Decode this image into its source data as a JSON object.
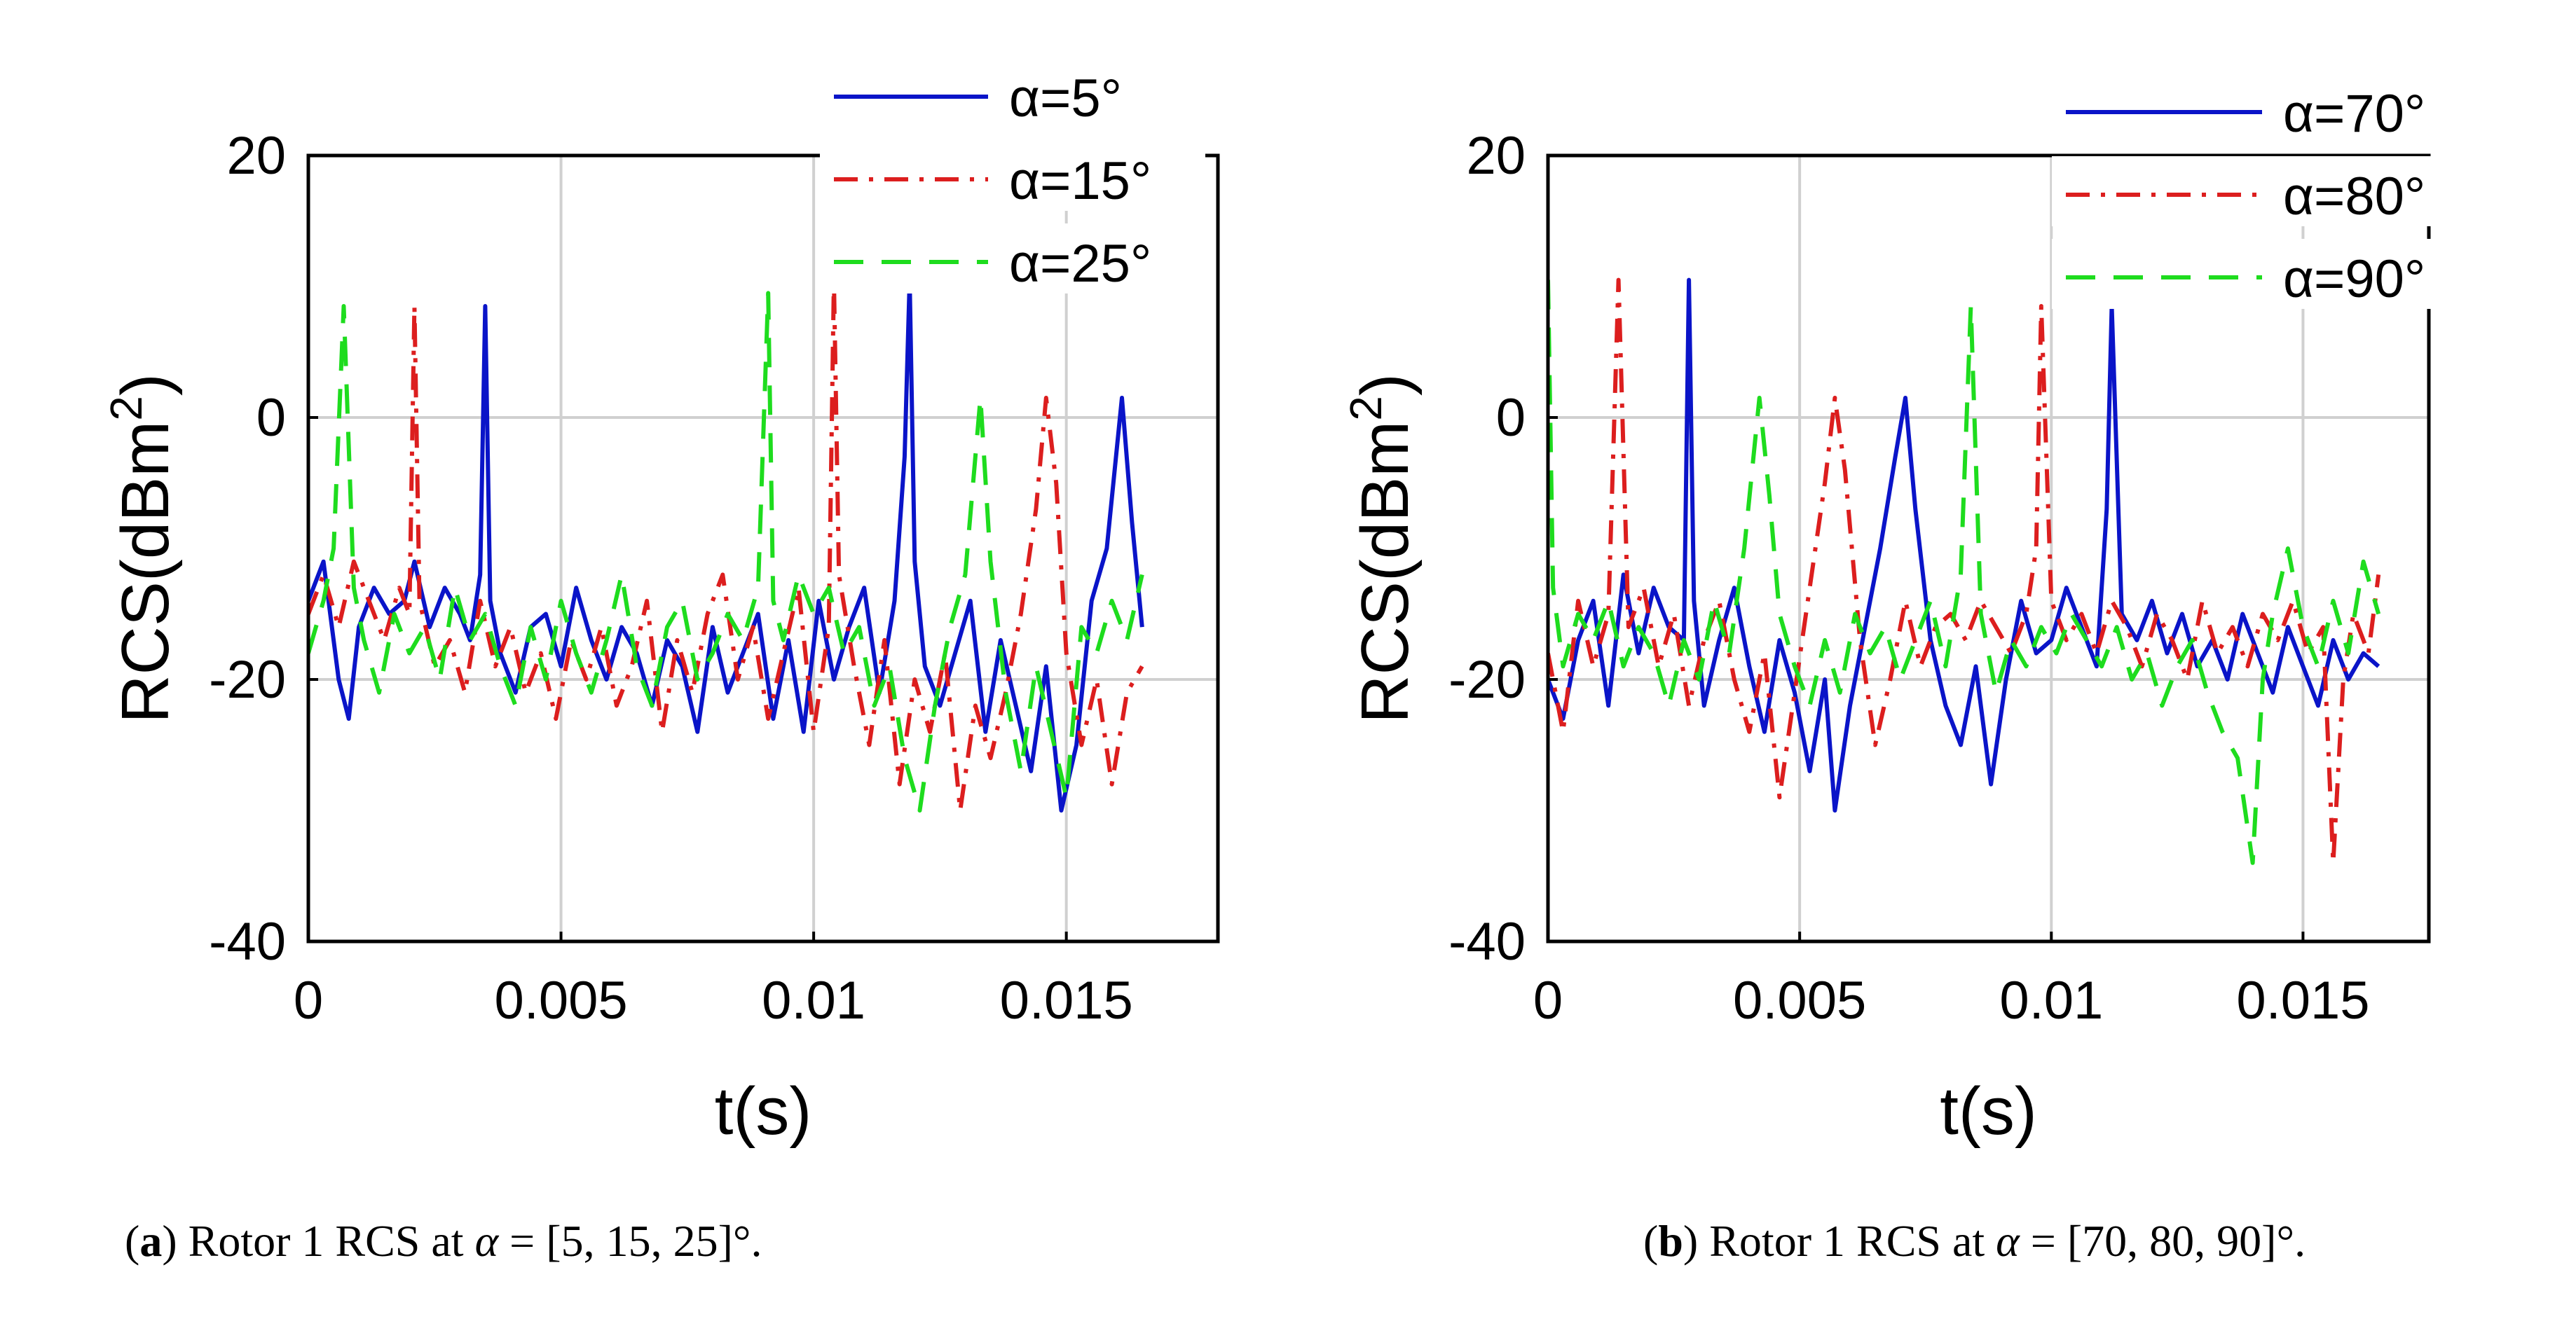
{
  "captions": {
    "a": {
      "letter": "a",
      "text": "Rotor 1 RCS at",
      "symbol": "α",
      "values": "= [5, 15, 25]°."
    },
    "b": {
      "letter": "b",
      "text": "Rotor 1 RCS at",
      "symbol": "α",
      "values": "= [70, 80, 90]°."
    }
  },
  "colors": {
    "blue": "#0a14c8",
    "red": "#dc1e1e",
    "green": "#1edc1e",
    "grid": "#d0d0d0",
    "axis": "#000000"
  },
  "chart_data": [
    {
      "type": "line",
      "xlabel": "t(s)",
      "ylabel": "RCS(dBm",
      "ylabel_sup": "2",
      "ylabel_end": ")",
      "xlim": [
        0,
        0.018
      ],
      "ylim": [
        -40,
        20
      ],
      "xticks": [
        0,
        0.005,
        0.01,
        0.015
      ],
      "xtick_labels": [
        "0",
        "0.005",
        "0.01",
        "0.015"
      ],
      "yticks": [
        -40,
        -20,
        0,
        20
      ],
      "ytick_labels": [
        "-40",
        "-20",
        "0",
        "20"
      ],
      "grid": true,
      "legend_position": "top-right",
      "series": [
        {
          "name": "α=5°",
          "color": "blue",
          "style": "solid",
          "x": [
            0,
            0.0003,
            0.0006,
            0.0008,
            0.001,
            0.0013,
            0.0016,
            0.0019,
            0.0021,
            0.0024,
            0.0027,
            0.003,
            0.0032,
            0.0034,
            0.0035,
            0.0036,
            0.0038,
            0.0041,
            0.0044,
            0.0047,
            0.005,
            0.0053,
            0.0056,
            0.0059,
            0.0062,
            0.0065,
            0.0068,
            0.0071,
            0.0074,
            0.0077,
            0.008,
            0.0083,
            0.0086,
            0.0089,
            0.0092,
            0.0095,
            0.0098,
            0.0101,
            0.0104,
            0.0107,
            0.011,
            0.0113,
            0.0116,
            0.0118,
            0.0119,
            0.012,
            0.0122,
            0.0125,
            0.0128,
            0.0131,
            0.0134,
            0.0137,
            0.014,
            0.0143,
            0.0146,
            0.0149,
            0.0152,
            0.0155,
            0.0158,
            0.0161,
            0.0163,
            0.0165
          ],
          "y": [
            -14,
            -11,
            -20,
            -23,
            -16,
            -13,
            -15,
            -14,
            -11,
            -16,
            -13,
            -15,
            -17,
            -12,
            8.5,
            -14,
            -18,
            -21,
            -16,
            -15,
            -19,
            -13,
            -17,
            -20,
            -16,
            -18,
            -22,
            -17,
            -19,
            -24,
            -16,
            -21,
            -18,
            -15,
            -23,
            -17,
            -24,
            -14,
            -20,
            -16,
            -13,
            -21,
            -14,
            -3,
            10.5,
            -11,
            -19,
            -22,
            -18,
            -14,
            -24,
            -17,
            -22,
            -27,
            -19,
            -30,
            -25,
            -14,
            -10,
            1.5,
            -8,
            -16
          ]
        },
        {
          "name": "α=15°",
          "color": "red",
          "style": "dashdot",
          "x": [
            0,
            0.0003,
            0.0006,
            0.0009,
            0.0012,
            0.0015,
            0.0018,
            0.002,
            0.0021,
            0.0022,
            0.0025,
            0.0028,
            0.0031,
            0.0034,
            0.0037,
            0.004,
            0.0043,
            0.0046,
            0.0049,
            0.0052,
            0.0055,
            0.0058,
            0.0061,
            0.0064,
            0.0067,
            0.007,
            0.0073,
            0.0076,
            0.0079,
            0.0082,
            0.0085,
            0.0088,
            0.0091,
            0.0094,
            0.0097,
            0.01,
            0.0103,
            0.0104,
            0.0105,
            0.0108,
            0.0111,
            0.0114,
            0.0117,
            0.012,
            0.0123,
            0.0126,
            0.0129,
            0.0132,
            0.0135,
            0.0138,
            0.0141,
            0.0144,
            0.0146,
            0.0148,
            0.015,
            0.0153,
            0.0156,
            0.0159,
            0.0162,
            0.0165
          ],
          "y": [
            -15,
            -12,
            -16,
            -11,
            -14,
            -17,
            -13,
            -15,
            8.5,
            -14,
            -19,
            -17,
            -21,
            -14,
            -19,
            -16,
            -21,
            -18,
            -23,
            -17,
            -20,
            -16,
            -22,
            -19,
            -14,
            -24,
            -17,
            -21,
            -15,
            -12,
            -20,
            -16,
            -23,
            -18,
            -13,
            -24,
            -16,
            10.5,
            -12,
            -19,
            -25,
            -17,
            -28,
            -20,
            -24,
            -18,
            -30,
            -22,
            -26,
            -21,
            -15,
            -7,
            1.5,
            -5,
            -18,
            -25,
            -20,
            -28,
            -21,
            -19
          ]
        },
        {
          "name": "α=25°",
          "color": "green",
          "style": "dashed",
          "x": [
            0,
            0.0003,
            0.0005,
            0.0007,
            0.0009,
            0.0011,
            0.0014,
            0.0017,
            0.002,
            0.0023,
            0.0026,
            0.0029,
            0.0032,
            0.0035,
            0.0038,
            0.0041,
            0.0044,
            0.0047,
            0.005,
            0.0053,
            0.0056,
            0.0059,
            0.0062,
            0.0065,
            0.0068,
            0.0071,
            0.0074,
            0.0077,
            0.008,
            0.0083,
            0.0086,
            0.0089,
            0.0091,
            0.0092,
            0.0094,
            0.0097,
            0.01,
            0.0103,
            0.0106,
            0.0109,
            0.0112,
            0.0115,
            0.0118,
            0.0121,
            0.0124,
            0.0127,
            0.013,
            0.0133,
            0.0135,
            0.0138,
            0.0141,
            0.0144,
            0.0147,
            0.015,
            0.0153,
            0.0156,
            0.0159,
            0.0162,
            0.0165
          ],
          "y": [
            -18,
            -14,
            -10,
            8.5,
            -13,
            -17,
            -21,
            -15,
            -18,
            -16,
            -20,
            -13,
            -17,
            -15,
            -19,
            -22,
            -16,
            -20,
            -14,
            -18,
            -21,
            -17,
            -12,
            -19,
            -22,
            -16,
            -14,
            -20,
            -18,
            -15,
            -17,
            -13,
            9.5,
            -14,
            -17,
            -12,
            -15,
            -13,
            -18,
            -16,
            -22,
            -19,
            -26,
            -30,
            -22,
            -16,
            -12,
            1.5,
            -11,
            -21,
            -27,
            -19,
            -24,
            -29,
            -16,
            -18,
            -14,
            -17,
            -12
          ]
        }
      ]
    },
    {
      "type": "line",
      "xlabel": "t(s)",
      "ylabel": "RCS(dBm",
      "ylabel_sup": "2",
      "ylabel_end": ")",
      "xlim": [
        0,
        0.0175
      ],
      "ylim": [
        -40,
        20
      ],
      "xticks": [
        0,
        0.005,
        0.01,
        0.015
      ],
      "xtick_labels": [
        "0",
        "0.005",
        "0.01",
        "0.015"
      ],
      "yticks": [
        -40,
        -20,
        0,
        20
      ],
      "ytick_labels": [
        "-40",
        "-20",
        "0",
        "20"
      ],
      "grid": true,
      "legend_position": "top-right",
      "series": [
        {
          "name": "α=70°",
          "color": "blue",
          "style": "solid",
          "x": [
            0,
            0.0003,
            0.0006,
            0.0009,
            0.0012,
            0.0015,
            0.0018,
            0.0021,
            0.0024,
            0.0027,
            0.0028,
            0.0029,
            0.0031,
            0.0034,
            0.0037,
            0.004,
            0.0043,
            0.0046,
            0.0049,
            0.0052,
            0.0055,
            0.0057,
            0.006,
            0.0063,
            0.0066,
            0.0069,
            0.0071,
            0.0073,
            0.0076,
            0.0079,
            0.0082,
            0.0085,
            0.0088,
            0.0091,
            0.0094,
            0.0097,
            0.01,
            0.0103,
            0.0106,
            0.0109,
            0.0111,
            0.0112,
            0.0114,
            0.0117,
            0.012,
            0.0123,
            0.0126,
            0.0129,
            0.0132,
            0.0135,
            0.0138,
            0.0141,
            0.0144,
            0.0147,
            0.015,
            0.0153,
            0.0156,
            0.0159,
            0.0162,
            0.0165
          ],
          "y": [
            -20,
            -23,
            -17,
            -14,
            -22,
            -12,
            -18,
            -13,
            -16,
            -17,
            10.5,
            -14,
            -22,
            -17,
            -13,
            -19,
            -24,
            -17,
            -21,
            -27,
            -20,
            -30,
            -22,
            -16,
            -10,
            -3,
            1.5,
            -7,
            -17,
            -22,
            -25,
            -19,
            -28,
            -20,
            -14,
            -18,
            -17,
            -13,
            -16,
            -19,
            -7,
            8.5,
            -15,
            -17,
            -14,
            -18,
            -15,
            -19,
            -17,
            -20,
            -15,
            -18,
            -21,
            -16,
            -19,
            -22,
            -17,
            -20,
            -18,
            -19
          ]
        },
        {
          "name": "α=80°",
          "color": "red",
          "style": "dashdot",
          "x": [
            0,
            0.0003,
            0.0006,
            0.0009,
            0.0012,
            0.0014,
            0.0016,
            0.0019,
            0.0022,
            0.0025,
            0.0028,
            0.0031,
            0.0034,
            0.0037,
            0.004,
            0.0043,
            0.0046,
            0.0049,
            0.0052,
            0.0055,
            0.0057,
            0.0059,
            0.0062,
            0.0065,
            0.0068,
            0.0071,
            0.0074,
            0.0077,
            0.008,
            0.0083,
            0.0086,
            0.0089,
            0.0092,
            0.0095,
            0.0097,
            0.0098,
            0.01,
            0.0103,
            0.0106,
            0.0109,
            0.0112,
            0.0115,
            0.0118,
            0.0121,
            0.0124,
            0.0127,
            0.013,
            0.0133,
            0.0136,
            0.0139,
            0.0142,
            0.0145,
            0.0148,
            0.0151,
            0.0154,
            0.0156,
            0.0158,
            0.016,
            0.0163,
            0.0165
          ],
          "y": [
            -18,
            -24,
            -14,
            -19,
            -15,
            10.5,
            -16,
            -13,
            -19,
            -15,
            -22,
            -17,
            -14,
            -20,
            -24,
            -18,
            -29,
            -21,
            -13,
            -5,
            1.5,
            -4,
            -17,
            -25,
            -20,
            -14,
            -19,
            -16,
            -15,
            -17,
            -14,
            -16,
            -18,
            -15,
            -10,
            8.5,
            -14,
            -17,
            -15,
            -18,
            -14,
            -16,
            -19,
            -15,
            -17,
            -20,
            -14,
            -18,
            -16,
            -19,
            -15,
            -17,
            -14,
            -18,
            -16,
            -34,
            -20,
            -15,
            -18,
            -12
          ]
        },
        {
          "name": "α=90°",
          "color": "green",
          "style": "dashed",
          "x": [
            0,
            0.0001,
            0.0003,
            0.0006,
            0.0009,
            0.0012,
            0.0015,
            0.0018,
            0.0021,
            0.0024,
            0.0027,
            0.003,
            0.0033,
            0.0036,
            0.0039,
            0.0042,
            0.0044,
            0.0046,
            0.0049,
            0.0052,
            0.0055,
            0.0058,
            0.0061,
            0.0064,
            0.0067,
            0.007,
            0.0073,
            0.0076,
            0.0079,
            0.0082,
            0.0084,
            0.0086,
            0.0089,
            0.0092,
            0.0095,
            0.0098,
            0.0101,
            0.0104,
            0.0107,
            0.011,
            0.0113,
            0.0116,
            0.0119,
            0.0122,
            0.0125,
            0.0128,
            0.0131,
            0.0134,
            0.0137,
            0.014,
            0.0142,
            0.0144,
            0.0147,
            0.015,
            0.0153,
            0.0156,
            0.0159,
            0.0162,
            0.0165
          ],
          "y": [
            10.5,
            -13,
            -19,
            -15,
            -17,
            -14,
            -19,
            -16,
            -18,
            -22,
            -17,
            -20,
            -14,
            -18,
            -10,
            1.5,
            -6,
            -15,
            -19,
            -22,
            -17,
            -21,
            -15,
            -18,
            -16,
            -20,
            -17,
            -14,
            -19,
            -12,
            8.5,
            -15,
            -21,
            -17,
            -19,
            -16,
            -18,
            -15,
            -17,
            -19,
            -16,
            -20,
            -18,
            -22,
            -19,
            -17,
            -21,
            -24,
            -26,
            -34,
            -20,
            -15,
            -10,
            -16,
            -19,
            -14,
            -18,
            -11,
            -15
          ]
        }
      ]
    }
  ]
}
